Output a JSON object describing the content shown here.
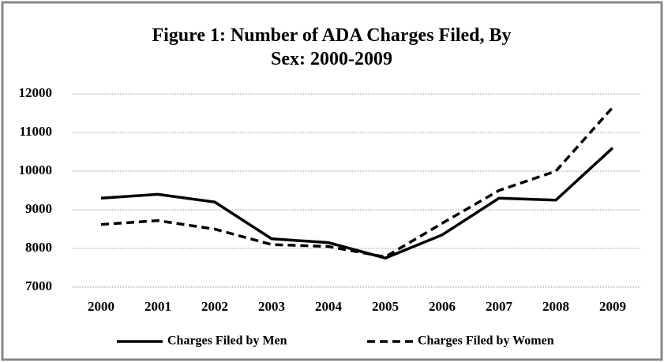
{
  "chart_data": {
    "type": "line",
    "title": "Figure 1: Number of ADA Charges Filed, By Sex: 2000-2009",
    "categories": [
      "2000",
      "2001",
      "2002",
      "2003",
      "2004",
      "2005",
      "2006",
      "2007",
      "2008",
      "2009"
    ],
    "series": [
      {
        "name": "Charges Filed by Men",
        "color": "#000000",
        "line_style": "solid",
        "values": [
          9300,
          9400,
          9200,
          8250,
          8150,
          7750,
          8350,
          9300,
          9250,
          10600
        ]
      },
      {
        "name": "Charges Filed by Women",
        "color": "#000000",
        "line_style": "dashed",
        "values": [
          8620,
          8720,
          8500,
          8100,
          8050,
          7780,
          8650,
          9500,
          10000,
          11650
        ]
      }
    ],
    "ylim": [
      7000,
      12000
    ],
    "yticks": [
      7000,
      8000,
      9000,
      10000,
      11000,
      12000
    ],
    "grid": true,
    "legend": "bottom"
  }
}
